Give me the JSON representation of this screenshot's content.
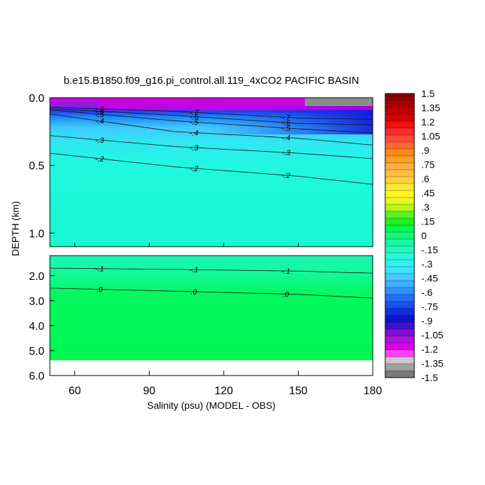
{
  "chart_data": {
    "type": "heatmap",
    "title": "b.e15.B1850.f09_g16.pi_control.all.119_4xCO2 PACIFIC BASIN",
    "xlabel": "Salinity (psu) (MODEL - OBS)",
    "ylabel": "DEPTH (km)",
    "x_ticks": [
      "60",
      "90",
      "120",
      "150",
      "180"
    ],
    "x_tick_values": [
      60,
      90,
      120,
      150,
      180
    ],
    "xlim": [
      50,
      180
    ],
    "upper_panel": {
      "ylim": [
        0,
        1.1
      ],
      "y_ticks": [
        "0.0",
        "0.5",
        "1.0"
      ],
      "y_tick_values": [
        0.0,
        0.5,
        1.0
      ]
    },
    "lower_panel": {
      "ylim": [
        1.2,
        6.0
      ],
      "y_ticks": [
        "2.0",
        "3.0",
        "4.0",
        "5.0",
        "6.0"
      ],
      "y_tick_values": [
        2.0,
        3.0,
        4.0,
        5.0,
        6.0
      ]
    },
    "colorbar": {
      "labels": [
        "1.5",
        "1.35",
        "1.2",
        "1.05",
        ".9",
        ".75",
        ".6",
        ".45",
        ".3",
        ".15",
        "0",
        "-.15",
        "-.3",
        "-.45",
        "-.6",
        "-.75",
        "-.9",
        "-1.05",
        "-1.2",
        "-1.35",
        "-1.5"
      ],
      "values": [
        1.5,
        1.35,
        1.2,
        1.05,
        0.9,
        0.75,
        0.6,
        0.45,
        0.3,
        0.15,
        0,
        -0.15,
        -0.3,
        -0.45,
        -0.6,
        -0.75,
        -0.9,
        -1.05,
        -1.2,
        -1.35,
        -1.5
      ]
    },
    "contours": [
      {
        "label": "-.2",
        "depths": [
          0.41,
          0.51,
          0.58,
          0.64
        ]
      },
      {
        "label": "-.3",
        "depths": [
          0.28,
          0.36,
          0.41,
          0.45
        ]
      },
      {
        "label": "-.4",
        "depths": [
          0.12,
          0.25,
          0.3,
          0.35
        ]
      },
      {
        "label": "-.5",
        "depths": [
          0.09,
          0.17,
          0.23,
          0.26
        ]
      },
      {
        "label": "-.6",
        "depths": [
          0.08,
          0.13,
          0.19,
          0.2
        ]
      },
      {
        "label": "-.7",
        "depths": [
          0.07,
          0.1,
          0.15,
          0.16
        ]
      },
      {
        "label": "-.1",
        "depths": [
          1.7,
          1.75,
          1.82,
          1.9
        ]
      },
      {
        "label": ".0",
        "depths": [
          2.5,
          2.62,
          2.75,
          2.9
        ]
      }
    ],
    "contour_x": [
      50,
      100,
      150,
      180
    ],
    "contour_label_x": [
      70,
      108,
      145
    ]
  }
}
